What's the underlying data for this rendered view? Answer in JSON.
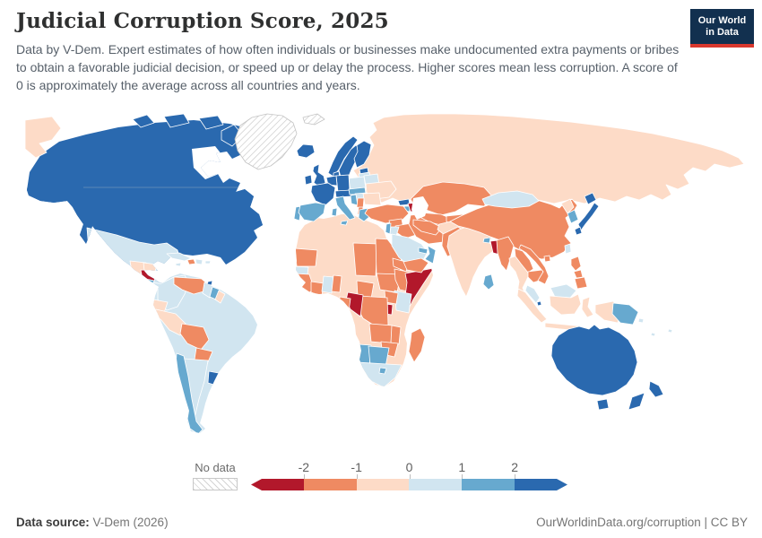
{
  "header": {
    "title": "Judicial Corruption Score, 2025",
    "subtitle": "Data by V-Dem. Expert estimates of how often individuals or businesses make undocumented extra payments or bribes to obtain a favorable judicial decision, or speed up or delay the process. Higher scores mean less corruption. A score of 0 is approximately the average across all countries and years.",
    "logo_line1": "Our World",
    "logo_line2": "in Data",
    "logo_bg": "#12304f",
    "logo_accent": "#d9382d"
  },
  "legend": {
    "no_data_label": "No data",
    "ticks": [
      "-2",
      "-1",
      "0",
      "1",
      "2"
    ],
    "colors": [
      "#b2182b",
      "#ef8a62",
      "#fddbc7",
      "#d1e5f0",
      "#67a9cf",
      "#2a69af"
    ]
  },
  "footer": {
    "source_label": "Data source:",
    "source_value": " V-Dem (2026)",
    "link": "OurWorldinData.org/corruption | CC BY"
  },
  "chart_data": {
    "type": "heatmap",
    "title": "Judicial Corruption Score, 2025",
    "legend_bins": [
      "< -2",
      "-2 to -1",
      "-1 to 0",
      "0 to 1",
      "1 to 2",
      "> 2"
    ],
    "legend_position": "bottom",
    "value_range": [
      -2,
      2
    ]
  },
  "map": {
    "ocean": "#ffffff",
    "countries": {
      "canada": "#2a69af",
      "usa": "#2a69af",
      "greenland": "url(#hatch)",
      "svalbard": "url(#hatch)",
      "mexico": "#d1e5f0",
      "guatemala": "#fddbc7",
      "honduras": "#fddbc7",
      "nicaragua": "#b2182b",
      "costa_rica": "#67a9cf",
      "panama": "#d1e5f0",
      "cuba": "#d1e5f0",
      "jamaica": "#d1e5f0",
      "haiti": "#ef8a62",
      "dominican_republic": "#d1e5f0",
      "puerto_rico": "#d1e5f0",
      "trinidad_and_tobago": "#2a69af",
      "brazil": "#d1e5f0",
      "colombia": "#d1e5f0",
      "venezuela": "#ef8a62",
      "guyana": "#d1e5f0",
      "suriname": "#67a9cf",
      "french_guiana": "#fddbc7",
      "ecuador": "#fddbc7",
      "peru": "#fddbc7",
      "bolivia": "#ef8a62",
      "paraguay": "#ef8a62",
      "chile": "#67a9cf",
      "argentina": "#d1e5f0",
      "uruguay": "#2a69af",
      "iceland": "#2a69af",
      "ireland": "#2a69af",
      "united_kingdom": "#2a69af",
      "norway": "#2a69af",
      "sweden": "#2a69af",
      "finland": "#2a69af",
      "denmark": "#2a69af",
      "germany": "#2a69af",
      "benelux": "#2a69af",
      "france": "#2a69af",
      "spain": "#67a9cf",
      "portugal": "#67a9cf",
      "italy": "#67a9cf",
      "switzerland_austria": "#2a69af",
      "poland": "#d1e5f0",
      "czech_slovakia": "#67a9cf",
      "hungary": "#d1e5f0",
      "estonia": "#2a69af",
      "latvia_lithuania": "#d1e5f0",
      "belarus": "#d1e5f0",
      "ukraine": "#fddbc7",
      "romania_bulgaria": "#fddbc7",
      "serbia": "#ef8a62",
      "croatia_slovenia": "#67a9cf",
      "albania": "#ef8a62",
      "greece": "#67a9cf",
      "russia": "#fddbc7",
      "turkey": "#ef8a62",
      "cyprus": "#ef8a62",
      "georgia": "#2a69af",
      "armenia": "#67a9cf",
      "azerbaijan": "#b2182b",
      "syria": "#ef8a62",
      "iraq": "#ef8a62",
      "iran": "#ef8a62",
      "israel": "#67a9cf",
      "jordan": "#d1e5f0",
      "saudi_arabia": "#d1e5f0",
      "yemen": "#ef8a62",
      "oman": "#67a9cf",
      "uae": "#67a9cf",
      "kazakhstan": "#ef8a62",
      "uzbekistan": "#ef8a62",
      "turkmenistan": "#ef8a62",
      "kyrgyzstan_tajikistan": "#ef8a62",
      "afghanistan": "#fddbc7",
      "pakistan": "#ef8a62",
      "india": "#fddbc7",
      "bhutan": "#67a9cf",
      "bangladesh": "#b2182b",
      "sri_lanka": "#67a9cf",
      "myanmar": "#ef8a62",
      "thailand": "#fddbc7",
      "laos": "#ef8a62",
      "cambodia": "#ef8a62",
      "vietnam": "#ef8a62",
      "malaysia": "#d1e5f0",
      "singapore": "#2a69af",
      "indonesia": "#fddbc7",
      "china": "#ef8a62",
      "mongolia": "#d1e5f0",
      "north_korea": "#fddbc7",
      "south_korea": "#67a9cf",
      "japan": "#2a69af",
      "taiwan": "#d1e5f0",
      "philippines": "#ef8a62",
      "papua_new_guinea": "#67a9cf",
      "pacific_islands": "#d1e5f0",
      "australia": "#2a69af",
      "new_zealand": "#2a69af",
      "north_africa": "#fddbc7",
      "mauritania": "#ef8a62",
      "senegal": "#d1e5f0",
      "guinea_region": "#ef8a62",
      "ivory_coast": "#ef8a62",
      "ghana": "#d1e5f0",
      "togo_benin": "#ef8a62",
      "chad": "#ef8a62",
      "sudan": "#ef8a62",
      "south_sudan": "#ef8a62",
      "eritrea_djibouti": "#ef8a62",
      "ethiopia": "#ef8a62",
      "somalia": "#b2182b",
      "kenya": "#d1e5f0",
      "uganda": "#ef8a62",
      "rwanda_burundi": "#b2182b",
      "dr_congo": "#ef8a62",
      "congo": "#b2182b",
      "gabon": "#ef8a62",
      "cameroon": "#ef8a62",
      "zambia": "#ef8a62",
      "malawi": "#ef8a62",
      "zimbabwe": "#ef8a62",
      "namibia": "#67a9cf",
      "botswana": "#67a9cf",
      "south_africa": "#d1e5f0",
      "lesotho": "#67a9cf",
      "madagascar": "#ef8a62"
    }
  }
}
